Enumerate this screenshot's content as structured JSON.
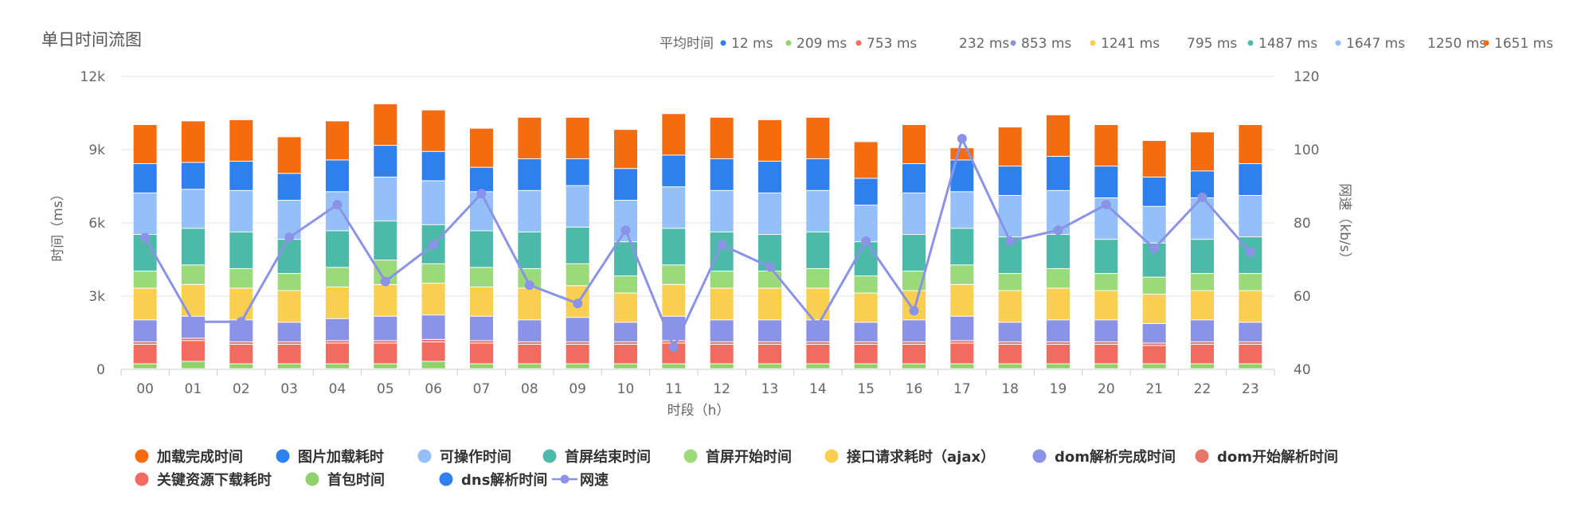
{
  "chart_data": {
    "type": "bar",
    "title": "单日时间流图",
    "xlabel": "时段（h）",
    "ylabel": "时间（ms）",
    "y2label": "网速（kb/s）",
    "ylim": [
      0,
      12000
    ],
    "y2lim": [
      40,
      120
    ],
    "y_ticks": [
      "0",
      "3k",
      "6k",
      "9k",
      "12k"
    ],
    "y2_ticks": [
      "40",
      "60",
      "80",
      "100",
      "120"
    ],
    "categories": [
      "00",
      "01",
      "02",
      "03",
      "04",
      "05",
      "06",
      "07",
      "08",
      "09",
      "10",
      "11",
      "12",
      "13",
      "14",
      "15",
      "16",
      "17",
      "18",
      "19",
      "20",
      "21",
      "22",
      "23"
    ],
    "averages_label": "平均时间",
    "averages": [
      {
        "text": "12 ms",
        "color": "#2f80ed"
      },
      {
        "text": "209 ms",
        "color": "#8fd16a"
      },
      {
        "text": "753 ms",
        "color": "#f16c60"
      },
      {
        "text": "232 ms",
        "color": ""
      },
      {
        "text": "853 ms",
        "color": "#8b93e6"
      },
      {
        "text": "1241 ms",
        "color": "#f9cf52"
      },
      {
        "text": "795 ms",
        "color": ""
      },
      {
        "text": "1487 ms",
        "color": "#4dbaa9"
      },
      {
        "text": "1647 ms",
        "color": "#94bff9"
      },
      {
        "text": "1250 ms",
        "color": ""
      },
      {
        "text": "1651 ms",
        "color": "#f36c10"
      }
    ],
    "series": [
      {
        "name": "dns解析时间",
        "color": "#2f80ed",
        "values": [
          10,
          10,
          10,
          10,
          10,
          10,
          10,
          10,
          10,
          10,
          10,
          10,
          10,
          10,
          10,
          10,
          10,
          10,
          10,
          10,
          10,
          10,
          10,
          10
        ]
      },
      {
        "name": "首包时间",
        "color": "#8fd16a",
        "values": [
          200,
          300,
          200,
          200,
          200,
          200,
          300,
          200,
          200,
          200,
          200,
          200,
          200,
          200,
          200,
          200,
          200,
          200,
          200,
          200,
          200,
          200,
          200,
          200
        ]
      },
      {
        "name": "关键资源下载耗时",
        "color": "#f16c60",
        "values": [
          800,
          850,
          800,
          800,
          850,
          850,
          800,
          850,
          800,
          800,
          800,
          850,
          800,
          800,
          800,
          800,
          800,
          850,
          800,
          800,
          800,
          750,
          800,
          800
        ]
      },
      {
        "name": "dom开始解析时间",
        "color": "#e7766a",
        "values": [
          100,
          100,
          100,
          100,
          100,
          100,
          100,
          100,
          100,
          100,
          100,
          100,
          100,
          100,
          100,
          100,
          100,
          100,
          100,
          100,
          100,
          100,
          100,
          100
        ]
      },
      {
        "name": "dom解析完成时间",
        "color": "#8b93e6",
        "values": [
          900,
          900,
          900,
          800,
          900,
          1000,
          1000,
          1000,
          900,
          1000,
          800,
          1000,
          900,
          900,
          900,
          800,
          900,
          1000,
          800,
          900,
          900,
          800,
          900,
          800
        ]
      },
      {
        "name": "接口请求耗时（ajax）",
        "color": "#f9cf52",
        "values": [
          1300,
          1300,
          1300,
          1300,
          1300,
          1300,
          1300,
          1200,
          1300,
          1300,
          1200,
          1300,
          1300,
          1300,
          1300,
          1200,
          1200,
          1300,
          1300,
          1300,
          1200,
          1200,
          1200,
          1300
        ]
      },
      {
        "name": "首屏开始时间",
        "color": "#9bd97b",
        "values": [
          700,
          800,
          800,
          700,
          800,
          1000,
          800,
          800,
          800,
          900,
          700,
          800,
          700,
          700,
          800,
          700,
          800,
          800,
          700,
          800,
          700,
          700,
          700,
          700
        ]
      },
      {
        "name": "首屏结束时间",
        "color": "#4dbaa9",
        "values": [
          1500,
          1500,
          1500,
          1400,
          1500,
          1600,
          1600,
          1500,
          1500,
          1500,
          1400,
          1500,
          1600,
          1500,
          1500,
          1400,
          1500,
          1500,
          1500,
          1400,
          1400,
          1400,
          1400,
          1500
        ]
      },
      {
        "name": "可操作时间",
        "color": "#94bff9",
        "values": [
          1700,
          1600,
          1700,
          1600,
          1600,
          1800,
          1800,
          1600,
          1700,
          1700,
          1700,
          1700,
          1700,
          1700,
          1700,
          1500,
          1700,
          1500,
          1700,
          1800,
          1700,
          1500,
          1700,
          1700
        ]
      },
      {
        "name": "图片加载耗时",
        "color": "#2f80ed",
        "values": [
          1200,
          1100,
          1200,
          1100,
          1300,
          1300,
          1200,
          1000,
          1300,
          1100,
          1300,
          1300,
          1300,
          1300,
          1300,
          1100,
          1200,
          1300,
          1200,
          1400,
          1300,
          1200,
          1100,
          1300
        ]
      },
      {
        "name": "加载完成时间",
        "color": "#f36c10",
        "values": [
          1600,
          1700,
          1700,
          1500,
          1600,
          1700,
          1700,
          1600,
          1700,
          1700,
          1600,
          1700,
          1700,
          1700,
          1700,
          1500,
          1600,
          500,
          1600,
          1700,
          1700,
          1500,
          1600,
          1600
        ]
      }
    ],
    "line": {
      "name": "网速",
      "color": "#8b93e6",
      "values": [
        76,
        53,
        53,
        76,
        85,
        64,
        74,
        88,
        63,
        58,
        78,
        46,
        74,
        68,
        52,
        75,
        56,
        103,
        75,
        78,
        85,
        73,
        87,
        72
      ]
    },
    "legend_order": [
      "加载完成时间",
      "图片加载耗时",
      "可操作时间",
      "首屏结束时间",
      "首屏开始时间",
      "接口请求耗时（ajax）",
      "dom解析完成时间",
      "dom开始解析时间",
      "关键资源下载耗时",
      "首包时间",
      "dns解析时间",
      "网速"
    ],
    "legend_placement": "bottom",
    "grid": true
  }
}
